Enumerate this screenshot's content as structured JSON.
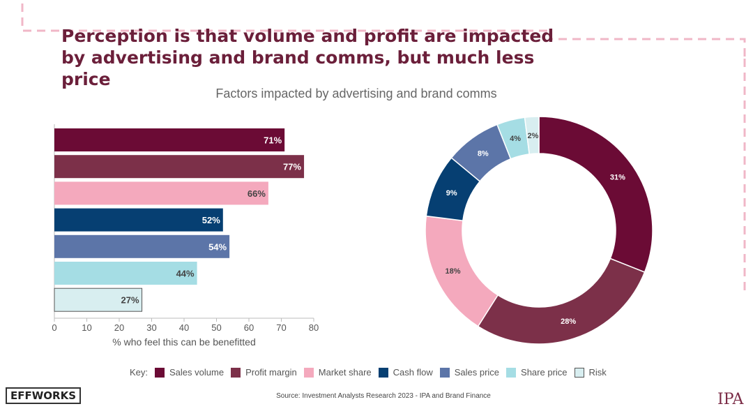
{
  "title": "Perception is that volume and profit are impacted by advertising and brand comms, but much less price",
  "subtitle": "Factors impacted by advertising and brand comms",
  "legend_key": "Key:",
  "source": "Source: Investment Analysts Research 2023 - IPA and Brand Finance",
  "logo_left": "EFFWORKS",
  "logo_right": "IPA",
  "colors": {
    "sales_volume": "#6b0b35",
    "profit_margin": "#7c3049",
    "market_share": "#f4a9bd",
    "cash_flow": "#063f72",
    "sales_price": "#5c75a8",
    "share_price": "#a5dde4",
    "risk": "#d8eef0"
  },
  "legend": [
    {
      "label": "Sales volume",
      "color": "#6b0b35"
    },
    {
      "label": "Profit margin",
      "color": "#7c3049"
    },
    {
      "label": "Market share",
      "color": "#f4a9bd"
    },
    {
      "label": "Cash flow",
      "color": "#063f72"
    },
    {
      "label": "Sales price",
      "color": "#5c75a8"
    },
    {
      "label": "Share price",
      "color": "#a5dde4"
    },
    {
      "label": "Risk",
      "color": "#d8eef0"
    }
  ],
  "chart_data": [
    {
      "type": "bar",
      "orientation": "horizontal",
      "categories": [
        "Sales volume",
        "Profit margin",
        "Market share",
        "Cash flow",
        "Sales price",
        "Share price",
        "Risk"
      ],
      "values": [
        71,
        77,
        66,
        52,
        54,
        44,
        27
      ],
      "labels": [
        "71%",
        "77%",
        "66%",
        "52%",
        "54%",
        "44%",
        "27%"
      ],
      "xlabel": "% who feel this can be benefitted",
      "xlim": [
        0,
        80
      ],
      "xticks": [
        "0",
        "10",
        "20",
        "30",
        "40",
        "50",
        "60",
        "70",
        "80"
      ]
    },
    {
      "type": "pie",
      "variant": "donut",
      "categories": [
        "Sales volume",
        "Profit margin",
        "Market share",
        "Cash flow",
        "Sales price",
        "Share price",
        "Risk"
      ],
      "values": [
        31,
        28,
        18,
        9,
        8,
        4,
        2
      ],
      "labels": [
        "31%",
        "28%",
        "18%",
        "9%",
        "8%",
        "4%",
        "2%"
      ]
    }
  ]
}
